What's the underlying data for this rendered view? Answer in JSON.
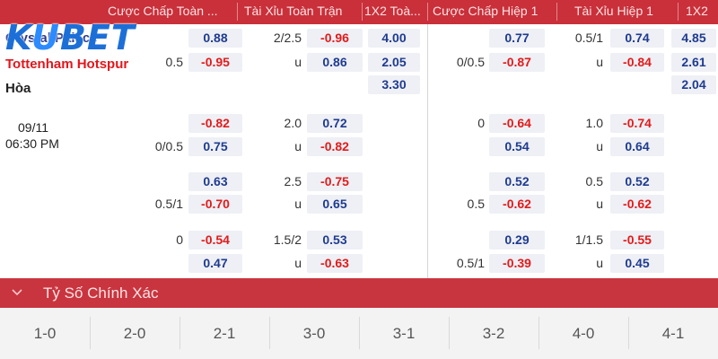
{
  "header": {
    "hdp_full": "Cược Chấp Toàn ...",
    "ou_full": "Tài Xỉu Toàn Trận",
    "x12_full": "1X2 Toà...",
    "hdp_half": "Cược Chấp Hiệp 1",
    "ou_half": "Tài Xỉu Hiệp 1",
    "x12_half": "1X2"
  },
  "logo": {
    "text_k": "K",
    "text_u": "U",
    "text_rest": "BET"
  },
  "match": {
    "home": "Crystal Palace",
    "away": "Tottenham Hotspur",
    "draw": "Hòa",
    "date": "09/11",
    "time": "06:30 PM"
  },
  "rows": [
    {
      "hdp_full": {
        "home_line": "",
        "home": "0.88",
        "away_line": "0.5",
        "away": "-0.95"
      },
      "ou_full": {
        "line": "2/2.5",
        "over": "-0.96",
        "u": "u",
        "under": "0.86"
      },
      "x12_full": [
        "4.00",
        "2.05",
        "3.30"
      ],
      "hdp_half": {
        "home_line": "",
        "home": "0.77",
        "away_line": "0/0.5",
        "away": "-0.87"
      },
      "ou_half": {
        "line": "0.5/1",
        "over": "0.74",
        "u": "u",
        "under": "-0.84"
      },
      "x12_half": [
        "4.85",
        "2.61",
        "2.04"
      ]
    },
    {
      "hdp_full": {
        "home_line": "",
        "home": "-0.82",
        "away_line": "0/0.5",
        "away": "0.75"
      },
      "ou_full": {
        "line": "2.0",
        "over": "0.72",
        "u": "u",
        "under": "-0.82"
      },
      "hdp_half": {
        "home_line": "0",
        "home": "-0.64",
        "away_line": "",
        "away": "0.54"
      },
      "ou_half": {
        "line": "1.0",
        "over": "-0.74",
        "u": "u",
        "under": "0.64"
      }
    },
    {
      "hdp_full": {
        "home_line": "",
        "home": "0.63",
        "away_line": "0.5/1",
        "away": "-0.70"
      },
      "ou_full": {
        "line": "2.5",
        "over": "-0.75",
        "u": "u",
        "under": "0.65"
      },
      "hdp_half": {
        "home_line": "",
        "home": "0.52",
        "away_line": "0.5",
        "away": "-0.62"
      },
      "ou_half": {
        "line": "0.5",
        "over": "0.52",
        "u": "u",
        "under": "-0.62"
      }
    },
    {
      "hdp_full": {
        "home_line": "0",
        "home": "-0.54",
        "away_line": "",
        "away": "0.47"
      },
      "ou_full": {
        "line": "1.5/2",
        "over": "0.53",
        "u": "u",
        "under": "-0.63"
      },
      "hdp_half": {
        "home_line": "",
        "home": "0.29",
        "away_line": "0.5/1",
        "away": "-0.39"
      },
      "ou_half": {
        "line": "1/1.5",
        "over": "-0.55",
        "u": "u",
        "under": "0.45"
      }
    }
  ],
  "exact_score": {
    "title": "Tỷ Số Chính Xác",
    "scores": [
      "1-0",
      "2-0",
      "2-1",
      "3-0",
      "3-1",
      "3-2",
      "4-0",
      "4-1"
    ]
  },
  "colors": {
    "header": "#c9303a",
    "positive": "#1f3b8f",
    "negative": "#e31b1b",
    "logo": "#1d6fd8"
  }
}
